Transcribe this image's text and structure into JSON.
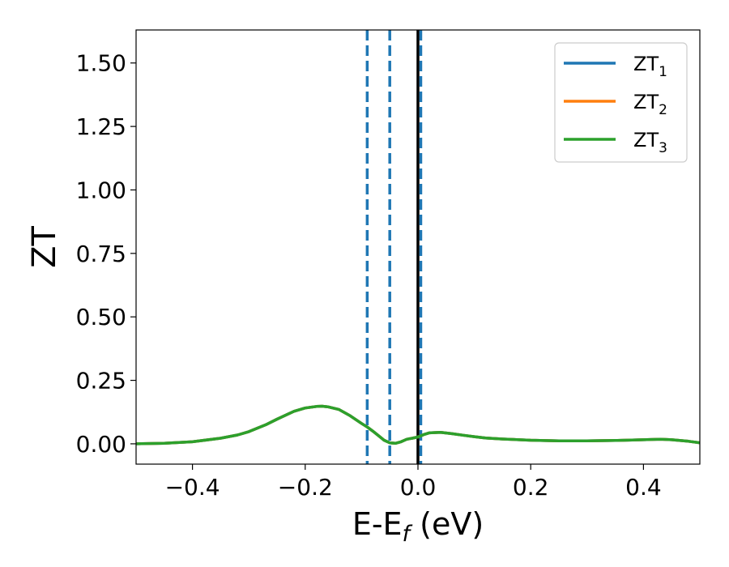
{
  "chart_data": {
    "type": "line",
    "xlabel": "E-E_f (eV)",
    "xlabel_parts": {
      "base": "E-E",
      "sub": "f",
      "unit": " (eV)"
    },
    "ylabel": "ZT",
    "xlim": [
      -0.5,
      0.5
    ],
    "ylim": [
      -0.08,
      1.63
    ],
    "xticks": [
      -0.4,
      -0.2,
      0.0,
      0.2,
      0.4
    ],
    "xtick_labels": [
      "−0.4",
      "−0.2",
      "0.0",
      "0.2",
      "0.4"
    ],
    "yticks": [
      0.0,
      0.25,
      0.5,
      0.75,
      1.0,
      1.25,
      1.5
    ],
    "ytick_labels": [
      "0.00",
      "0.25",
      "0.50",
      "0.75",
      "1.00",
      "1.25",
      "1.50"
    ],
    "grid": false,
    "legend_position": "top-right",
    "vertical_lines": [
      {
        "x": -0.09,
        "style": "dashed",
        "color": "#1f77b4"
      },
      {
        "x": -0.05,
        "style": "dashed",
        "color": "#1f77b4"
      },
      {
        "x": 0.0,
        "style": "solid",
        "color": "#000000"
      },
      {
        "x": 0.005,
        "style": "dashed",
        "color": "#1f77b4"
      }
    ],
    "series": [
      {
        "name": "ZT_1",
        "label_base": "ZT",
        "label_sub": "1",
        "color": "#1f77b4",
        "x": [
          -0.5,
          -0.45,
          -0.4,
          -0.35,
          -0.32,
          -0.3,
          -0.27,
          -0.25,
          -0.22,
          -0.2,
          -0.18,
          -0.17,
          -0.16,
          -0.14,
          -0.12,
          -0.1,
          -0.09,
          -0.08,
          -0.07,
          -0.06,
          -0.05,
          -0.04,
          -0.03,
          -0.02,
          -0.01,
          0.0,
          0.01,
          0.02,
          0.04,
          0.06,
          0.08,
          0.1,
          0.12,
          0.15,
          0.2,
          0.25,
          0.3,
          0.35,
          0.4,
          0.43,
          0.45,
          0.48,
          0.5
        ],
        "y": [
          0.0,
          0.002,
          0.008,
          0.022,
          0.035,
          0.048,
          0.075,
          0.097,
          0.128,
          0.141,
          0.147,
          0.148,
          0.146,
          0.135,
          0.11,
          0.08,
          0.066,
          0.05,
          0.032,
          0.014,
          0.004,
          0.002,
          0.008,
          0.018,
          0.022,
          0.027,
          0.036,
          0.043,
          0.045,
          0.04,
          0.034,
          0.028,
          0.023,
          0.019,
          0.014,
          0.012,
          0.012,
          0.013,
          0.016,
          0.018,
          0.016,
          0.01,
          0.004
        ]
      },
      {
        "name": "ZT_2",
        "label_base": "ZT",
        "label_sub": "2",
        "color": "#ff7f0e",
        "x": [
          -0.5,
          -0.45,
          -0.4,
          -0.35,
          -0.32,
          -0.3,
          -0.27,
          -0.25,
          -0.22,
          -0.2,
          -0.18,
          -0.17,
          -0.16,
          -0.14,
          -0.12,
          -0.1,
          -0.09,
          -0.08,
          -0.07,
          -0.06,
          -0.05,
          -0.04,
          -0.03,
          -0.02,
          -0.01,
          0.0,
          0.01,
          0.02,
          0.04,
          0.06,
          0.08,
          0.1,
          0.12,
          0.15,
          0.2,
          0.25,
          0.3,
          0.35,
          0.4,
          0.43,
          0.45,
          0.48,
          0.5
        ],
        "y": [
          0.0,
          0.002,
          0.008,
          0.022,
          0.035,
          0.048,
          0.075,
          0.097,
          0.128,
          0.141,
          0.147,
          0.148,
          0.146,
          0.135,
          0.11,
          0.08,
          0.066,
          0.05,
          0.032,
          0.014,
          0.004,
          0.002,
          0.008,
          0.018,
          0.022,
          0.027,
          0.036,
          0.043,
          0.045,
          0.04,
          0.034,
          0.028,
          0.023,
          0.019,
          0.014,
          0.012,
          0.012,
          0.013,
          0.016,
          0.018,
          0.016,
          0.01,
          0.004
        ]
      },
      {
        "name": "ZT_3",
        "label_base": "ZT",
        "label_sub": "3",
        "color": "#2ca02c",
        "x": [
          -0.5,
          -0.45,
          -0.4,
          -0.35,
          -0.32,
          -0.3,
          -0.27,
          -0.25,
          -0.22,
          -0.2,
          -0.18,
          -0.17,
          -0.16,
          -0.14,
          -0.12,
          -0.1,
          -0.09,
          -0.08,
          -0.07,
          -0.06,
          -0.05,
          -0.04,
          -0.03,
          -0.02,
          -0.01,
          0.0,
          0.01,
          0.02,
          0.04,
          0.06,
          0.08,
          0.1,
          0.12,
          0.15,
          0.2,
          0.25,
          0.3,
          0.35,
          0.4,
          0.43,
          0.45,
          0.48,
          0.5
        ],
        "y": [
          0.0,
          0.002,
          0.008,
          0.022,
          0.035,
          0.048,
          0.075,
          0.097,
          0.128,
          0.141,
          0.147,
          0.148,
          0.146,
          0.135,
          0.11,
          0.08,
          0.066,
          0.05,
          0.032,
          0.014,
          0.004,
          0.002,
          0.008,
          0.018,
          0.022,
          0.027,
          0.036,
          0.043,
          0.045,
          0.04,
          0.034,
          0.028,
          0.023,
          0.019,
          0.014,
          0.012,
          0.012,
          0.013,
          0.016,
          0.018,
          0.016,
          0.01,
          0.004
        ]
      }
    ]
  }
}
